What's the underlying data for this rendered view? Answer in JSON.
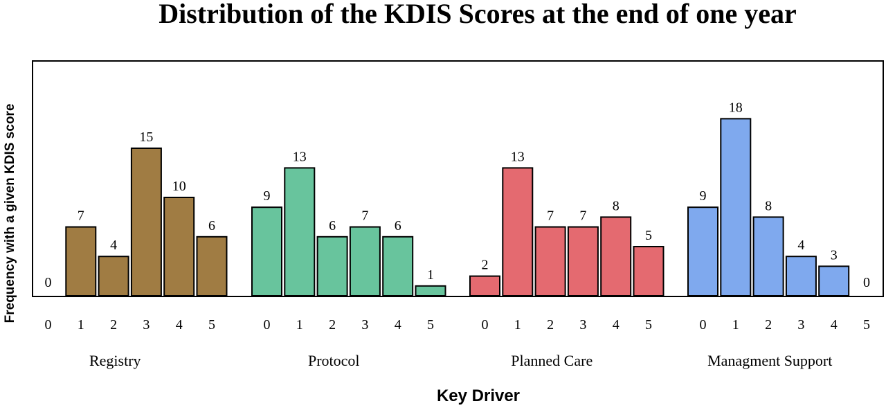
{
  "chart_data": {
    "type": "bar",
    "title": "Distribution of the KDIS Scores at the end of one year",
    "xlabel": "Key Driver",
    "ylabel": "Frequency with a given KDIS score",
    "categories": [
      "0",
      "1",
      "2",
      "3",
      "4",
      "5"
    ],
    "ylim": [
      0,
      20
    ],
    "grid": false,
    "series": [
      {
        "name": "Registry",
        "color": "#a07c43",
        "tick_labels": [
          "0",
          "1",
          "2",
          "3",
          "4",
          "5"
        ],
        "values": [
          0,
          7,
          4,
          15,
          10,
          6
        ],
        "value_labels": [
          "0",
          "7",
          "4",
          "15",
          "10",
          "6"
        ]
      },
      {
        "name": "Protocol",
        "color": "#68c49d",
        "tick_labels": [
          "0",
          "1",
          "2",
          "3",
          "4",
          "5"
        ],
        "values": [
          9,
          13,
          6,
          7,
          6,
          1
        ],
        "value_labels": [
          "9",
          "13",
          "6",
          "7",
          "6",
          "1"
        ]
      },
      {
        "name": "Planned Care",
        "color": "#e46a70",
        "tick_labels": [
          "0",
          "1",
          "2",
          "3",
          "4",
          "5"
        ],
        "values": [
          2,
          13,
          7,
          7,
          8,
          5
        ],
        "value_labels": [
          "2",
          "13",
          "7",
          "7",
          "8",
          "5"
        ]
      },
      {
        "name": "Managment Support",
        "color": "#7fa9ee",
        "tick_labels": [
          "0",
          "1",
          "2",
          "3",
          "4",
          "5"
        ],
        "values": [
          9,
          18,
          8,
          4,
          3,
          0
        ],
        "value_labels": [
          "9",
          "18",
          "8",
          "4",
          "3",
          "0"
        ]
      }
    ]
  }
}
